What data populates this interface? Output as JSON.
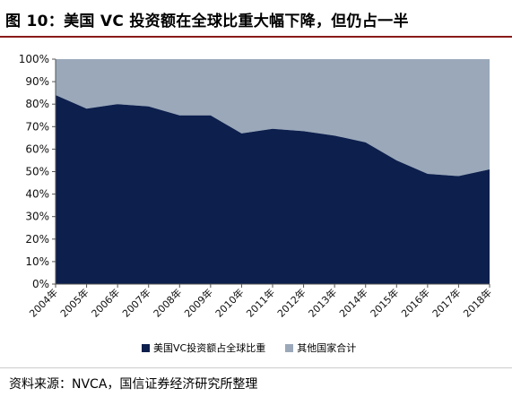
{
  "title": "图 10：美国 VC 投资额在全球比重大幅下降，但仍占一半",
  "source": "资料来源：NVCA，国信证券经济研究所整理",
  "colors": {
    "us": "#0c1f4d",
    "other": "#9aa8ba",
    "rule": "#8b1a1a"
  },
  "chart_data": {
    "type": "area",
    "stacked": true,
    "title": "",
    "xlabel": "",
    "ylabel": "",
    "ylim": [
      0,
      100
    ],
    "yticks": [
      "0%",
      "10%",
      "20%",
      "30%",
      "40%",
      "50%",
      "60%",
      "70%",
      "80%",
      "90%",
      "100%"
    ],
    "categories": [
      "2004年",
      "2005年",
      "2006年",
      "2007年",
      "2008年",
      "2009年",
      "2010年",
      "2011年",
      "2012年",
      "2013年",
      "2014年",
      "2015年",
      "2016年",
      "2017年",
      "2018年"
    ],
    "series": [
      {
        "name": "美国VC投资额占全球比重",
        "color": "#0c1f4d",
        "values": [
          84,
          78,
          80,
          79,
          75,
          75,
          67,
          69,
          68,
          66,
          63,
          55,
          49,
          48,
          51
        ]
      },
      {
        "name": "其他国家合计",
        "color": "#9aa8ba",
        "values": [
          16,
          22,
          20,
          21,
          25,
          25,
          33,
          31,
          32,
          34,
          37,
          45,
          51,
          52,
          49
        ]
      }
    ],
    "legend_position": "bottom",
    "grid": false
  }
}
